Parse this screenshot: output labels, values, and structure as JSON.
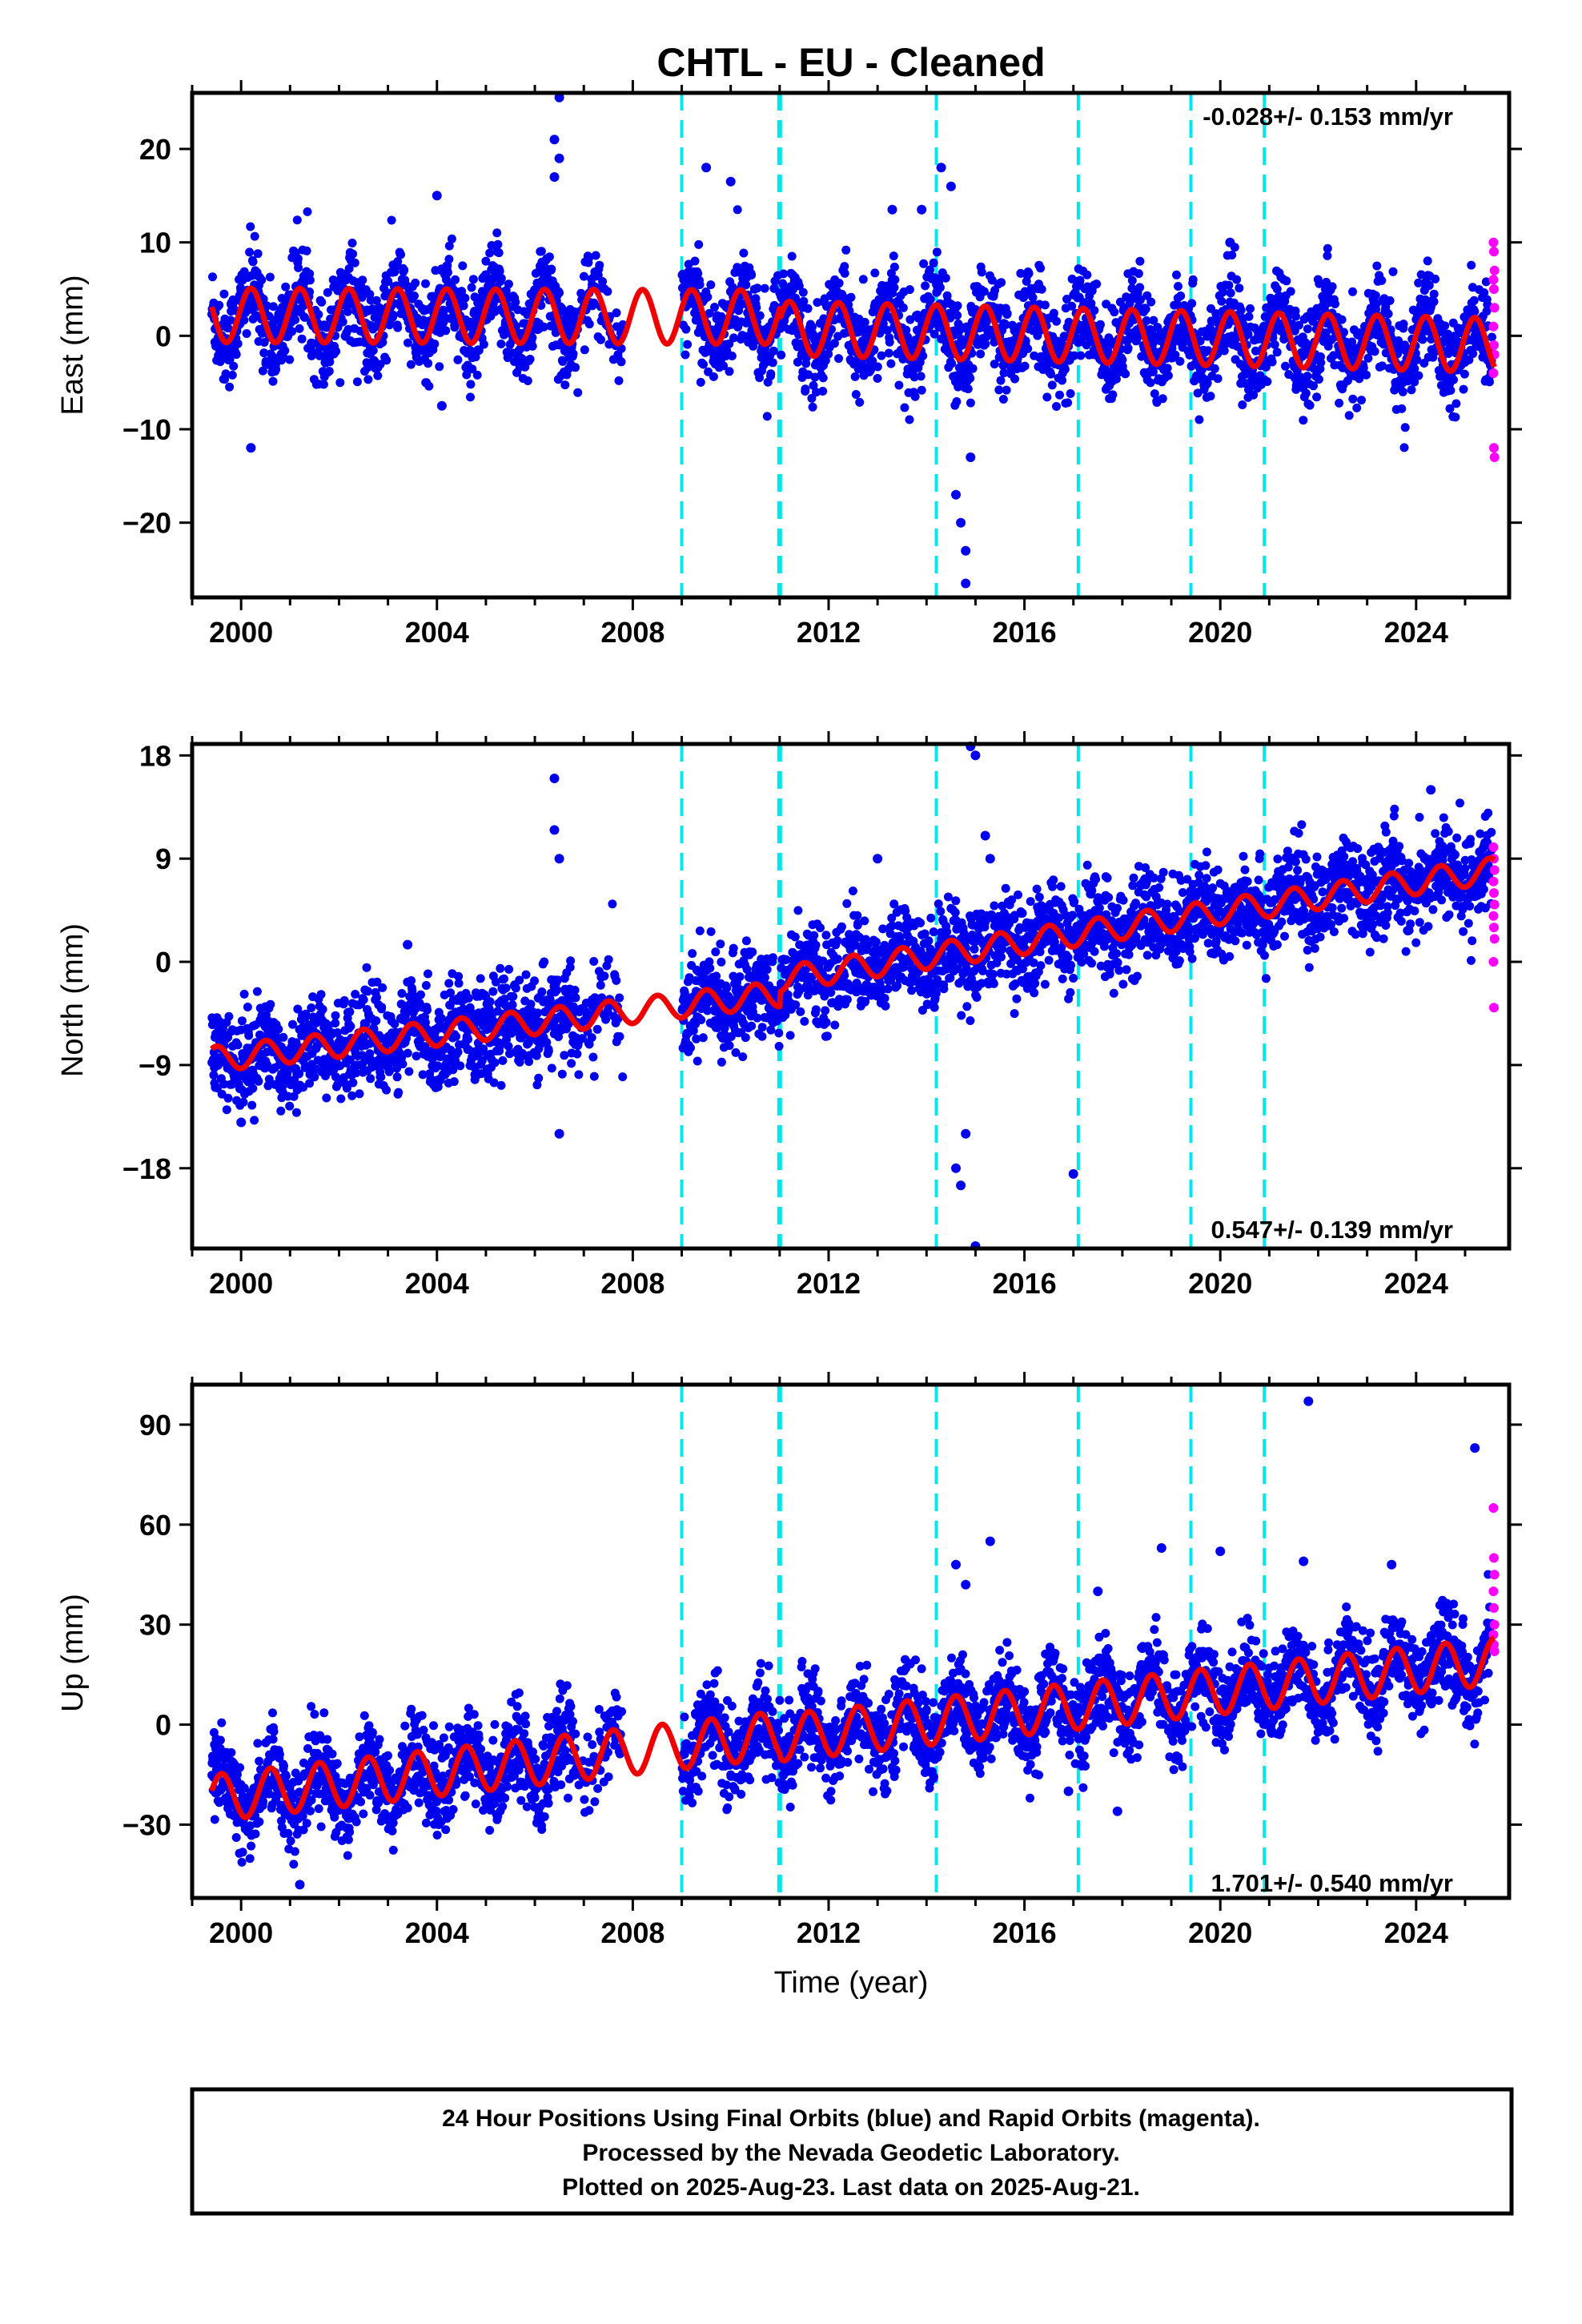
{
  "title": "CHTL  - EU - Cleaned",
  "colors": {
    "final_orbits": "#0000ee",
    "rapid_orbits": "#ff00ff",
    "model_fit": "#ee0000",
    "offset_lines": "#00e5ee",
    "frame": "#000000"
  },
  "chart_data": [
    {
      "type": "scatter",
      "name": "east-panel",
      "ylabel": "East (mm)",
      "xlabel": "",
      "xlim": [
        1999.0,
        2025.9
      ],
      "ylim": [
        -28,
        26
      ],
      "xticks": [
        2000,
        2004,
        2008,
        2012,
        2016,
        2020,
        2024
      ],
      "xtick_labels": [
        "2000",
        "2004",
        "2008",
        "2012",
        "2016",
        "2020",
        "2024"
      ],
      "yticks": [
        -20,
        -10,
        0,
        10,
        20
      ],
      "ytick_labels": [
        "−20",
        "−10",
        "0",
        "10",
        "20"
      ],
      "rate_text": "-0.028+/- 0.153 mm/yr",
      "rate_position": "top-right",
      "offset_epochs": [
        2009.0,
        2011.0,
        2014.2,
        2017.1,
        2019.4,
        2020.9
      ],
      "model": {
        "segments": [
          {
            "t0": 1999.4,
            "t1": 2011.0,
            "start": 2.2,
            "end": 2.0
          },
          {
            "t0": 2011.0,
            "t1": 2025.6,
            "start": 0.8,
            "end": -1.0
          }
        ],
        "annual_amplitude": 2.9,
        "phase_peak_year_fraction": 0.2
      },
      "scatter_noise": 2.5,
      "rapid_points": [
        10,
        9,
        7,
        6,
        5,
        3,
        1,
        -1,
        -2,
        -4,
        -12,
        -13
      ],
      "outliers": [
        [
          2006.5,
          25.5
        ],
        [
          2006.4,
          21
        ],
        [
          2006.5,
          19
        ],
        [
          2006.4,
          17
        ],
        [
          2009.5,
          18
        ],
        [
          2010.0,
          16.5
        ],
        [
          2013.3,
          13.5
        ],
        [
          2013.9,
          13.5
        ],
        [
          2014.3,
          18
        ],
        [
          2014.5,
          16
        ],
        [
          2004.0,
          15
        ],
        [
          2000.2,
          -12
        ],
        [
          2014.7,
          -20
        ],
        [
          2014.8,
          -23
        ],
        [
          2014.8,
          -26.5
        ],
        [
          2014.6,
          -17
        ],
        [
          2004.1,
          -7.5
        ],
        [
          2014.9,
          -13
        ],
        [
          2020.2,
          10
        ]
      ]
    },
    {
      "type": "scatter",
      "name": "north-panel",
      "ylabel": "North (mm)",
      "xlabel": "",
      "xlim": [
        1999.0,
        2025.9
      ],
      "ylim": [
        -25,
        19
      ],
      "xticks": [
        2000,
        2004,
        2008,
        2012,
        2016,
        2020,
        2024
      ],
      "xtick_labels": [
        "2000",
        "2004",
        "2008",
        "2012",
        "2016",
        "2020",
        "2024"
      ],
      "yticks": [
        -18,
        -9,
        0,
        9,
        18
      ],
      "ytick_labels": [
        "−18",
        "−9",
        "0",
        "9",
        "18"
      ],
      "rate_text": "0.547+/- 0.139 mm/yr",
      "rate_position": "bottom-right",
      "offset_epochs": [
        2009.0,
        2011.0,
        2014.2,
        2017.1,
        2019.4,
        2020.9
      ],
      "model": {
        "segments": [
          {
            "t0": 1999.4,
            "t1": 2011.0,
            "start": -8.5,
            "end": -2.8
          },
          {
            "t0": 2011.0,
            "t1": 2025.6,
            "start": -1.5,
            "end": 8.0
          }
        ],
        "annual_amplitude": 1.1,
        "phase_peak_year_fraction": 0.5
      },
      "scatter_noise": 2.0,
      "rapid_points": [
        10,
        9,
        8,
        7,
        6,
        5,
        4,
        3,
        2,
        0,
        -4
      ],
      "outliers": [
        [
          2006.4,
          16
        ],
        [
          2006.4,
          11.5
        ],
        [
          2006.5,
          9
        ],
        [
          2006.5,
          -15
        ],
        [
          2014.9,
          19
        ],
        [
          2015.0,
          18
        ],
        [
          2015.2,
          11
        ],
        [
          2015.3,
          9
        ],
        [
          2014.6,
          -18
        ],
        [
          2014.7,
          -19.5
        ],
        [
          2014.8,
          -15
        ],
        [
          2015.0,
          -25
        ],
        [
          2017.0,
          -18.5
        ],
        [
          2013.0,
          9
        ],
        [
          2024.3,
          15
        ],
        [
          2003.4,
          1.5
        ],
        [
          2000.0,
          -14
        ]
      ]
    },
    {
      "type": "scatter",
      "name": "up-panel",
      "ylabel": "Up (mm)",
      "xlabel": "Time (year)",
      "xlim": [
        1999.0,
        2025.9
      ],
      "ylim": [
        -52,
        102
      ],
      "xticks": [
        2000,
        2004,
        2008,
        2012,
        2016,
        2020,
        2024
      ],
      "xtick_labels": [
        "2000",
        "2004",
        "2008",
        "2012",
        "2016",
        "2020",
        "2024"
      ],
      "yticks": [
        -30,
        0,
        30,
        60,
        90
      ],
      "ytick_labels": [
        "−30",
        "0",
        "30",
        "60",
        "90"
      ],
      "rate_text": "1.701+/- 0.540 mm/yr",
      "rate_position": "bottom-right",
      "offset_epochs": [
        2009.0,
        2011.0,
        2014.2,
        2017.1,
        2019.4,
        2020.9
      ],
      "model": {
        "segments": [
          {
            "t0": 1999.4,
            "t1": 2011.0,
            "start": -22,
            "end": -3
          },
          {
            "t0": 2011.0,
            "t1": 2025.6,
            "start": -4,
            "end": 19
          }
        ],
        "annual_amplitude": 7.0,
        "phase_peak_year_fraction": 0.6
      },
      "scatter_noise": 6.5,
      "rapid_points": [
        65,
        50,
        45,
        40,
        35,
        30,
        27,
        24,
        22
      ],
      "outliers": [
        [
          2021.8,
          97
        ],
        [
          2025.2,
          83
        ],
        [
          2014.6,
          48
        ],
        [
          2014.8,
          42
        ],
        [
          2015.3,
          55
        ],
        [
          2018.8,
          53
        ],
        [
          2020.0,
          52
        ],
        [
          2021.7,
          49
        ],
        [
          2023.5,
          48
        ],
        [
          2017.5,
          40
        ],
        [
          2001.2,
          -48
        ],
        [
          2017.9,
          -26
        ],
        [
          2016.9,
          -20
        ]
      ]
    }
  ],
  "footer": {
    "line1": "24 Hour Positions Using Final Orbits (blue) and Rapid Orbits (magenta).",
    "line2": "Processed by the Nevada Geodetic Laboratory.",
    "line3": "Plotted on 2025-Aug-23. Last data on 2025-Aug-21."
  }
}
